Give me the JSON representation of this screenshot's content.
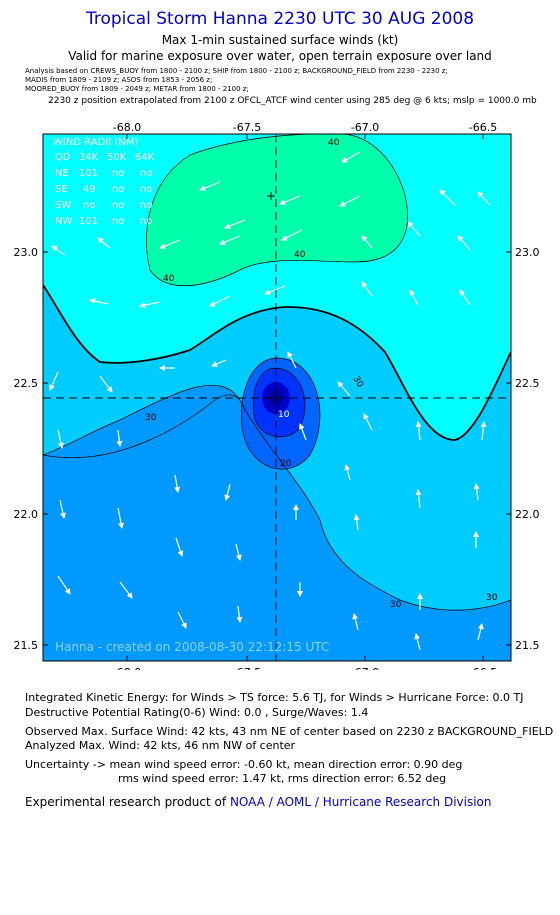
{
  "header": {
    "title": "Tropical Storm Hanna 2230 UTC 30 AUG 2008",
    "subtitle1": "Max 1-min sustained surface winds (kt)",
    "subtitle2": "Valid for marine exposure over water, open terrain exposure over land"
  },
  "sources": {
    "line1": "Analysis based on  CREWS_BUOY from 1800 - 2100 z;  SHIP from 1800 - 2100 z;  BACKGROUND_FIELD from 2230 - 2230 z;",
    "line2": "MADIS from 1809 - 2109 z;  ASOS from 1853 - 2056 z;",
    "line3": "MOORED_BUOY from 1809 - 2049 z;  METAR from 1800 - 2100 z;"
  },
  "position_note": "2230 z position extrapolated from 2100 z OFCL_ATCF wind center using 285 deg @ 6 kts; mslp = 1000.0 mb",
  "map": {
    "lon_ticks": [
      "-68.0",
      "-67.5",
      "-67.0",
      "-66.5"
    ],
    "lat_ticks": [
      "23.0",
      "22.5",
      "22.0",
      "21.5"
    ],
    "wind_radii": {
      "title": "WIND RADII (NM)",
      "header": [
        "QD",
        "34K",
        "50K",
        "64K"
      ],
      "rows": [
        [
          "NE",
          "101",
          "no",
          "no"
        ],
        [
          "SE",
          "49",
          "no",
          "no"
        ],
        [
          "SW",
          "no",
          "no",
          "no"
        ],
        [
          "NW",
          "101",
          "no",
          "no"
        ]
      ]
    },
    "contour_labels": [
      "40",
      "40",
      "40",
      "30",
      "30",
      "30",
      "30",
      "20",
      "10"
    ],
    "created_note": "Hanna - created on 2008-08-30 22:12:15 UTC",
    "colors": {
      "above40": "#00ffaa",
      "c34to40": "#00ffff",
      "c30to34": "#00ccff",
      "c20to30": "#0099ff",
      "c10to20": "#0066ff",
      "c0to10": "#0033ff",
      "core": "#0000cc"
    }
  },
  "stats": {
    "ike": "Integrated Kinetic Energy:  for Winds > TS force: 5.6 TJ,  for Winds > Hurricane Force: 0.0 TJ",
    "dpr": "Destructive Potential Rating(0-6)   Wind: 0.0 , Surge/Waves: 1.4",
    "obs_max": "Observed Max. Surface Wind: 42 kts, 43 nm NE of center based on 2230 z BACKGROUND_FIELD",
    "analyzed_max": "Analyzed Max. Wind: 42 kts, 46 nm NW of center",
    "uncert1": "Uncertainty -> mean wind speed error:  -0.60 kt,   mean direction error: 0.90 deg",
    "uncert2": "rms wind speed error: 1.47 kt,   rms direction error: 6.52 deg",
    "credit_prefix": "Experimental research product of",
    "credit_link": "NOAA / AOML / Hurricane Research Division"
  }
}
